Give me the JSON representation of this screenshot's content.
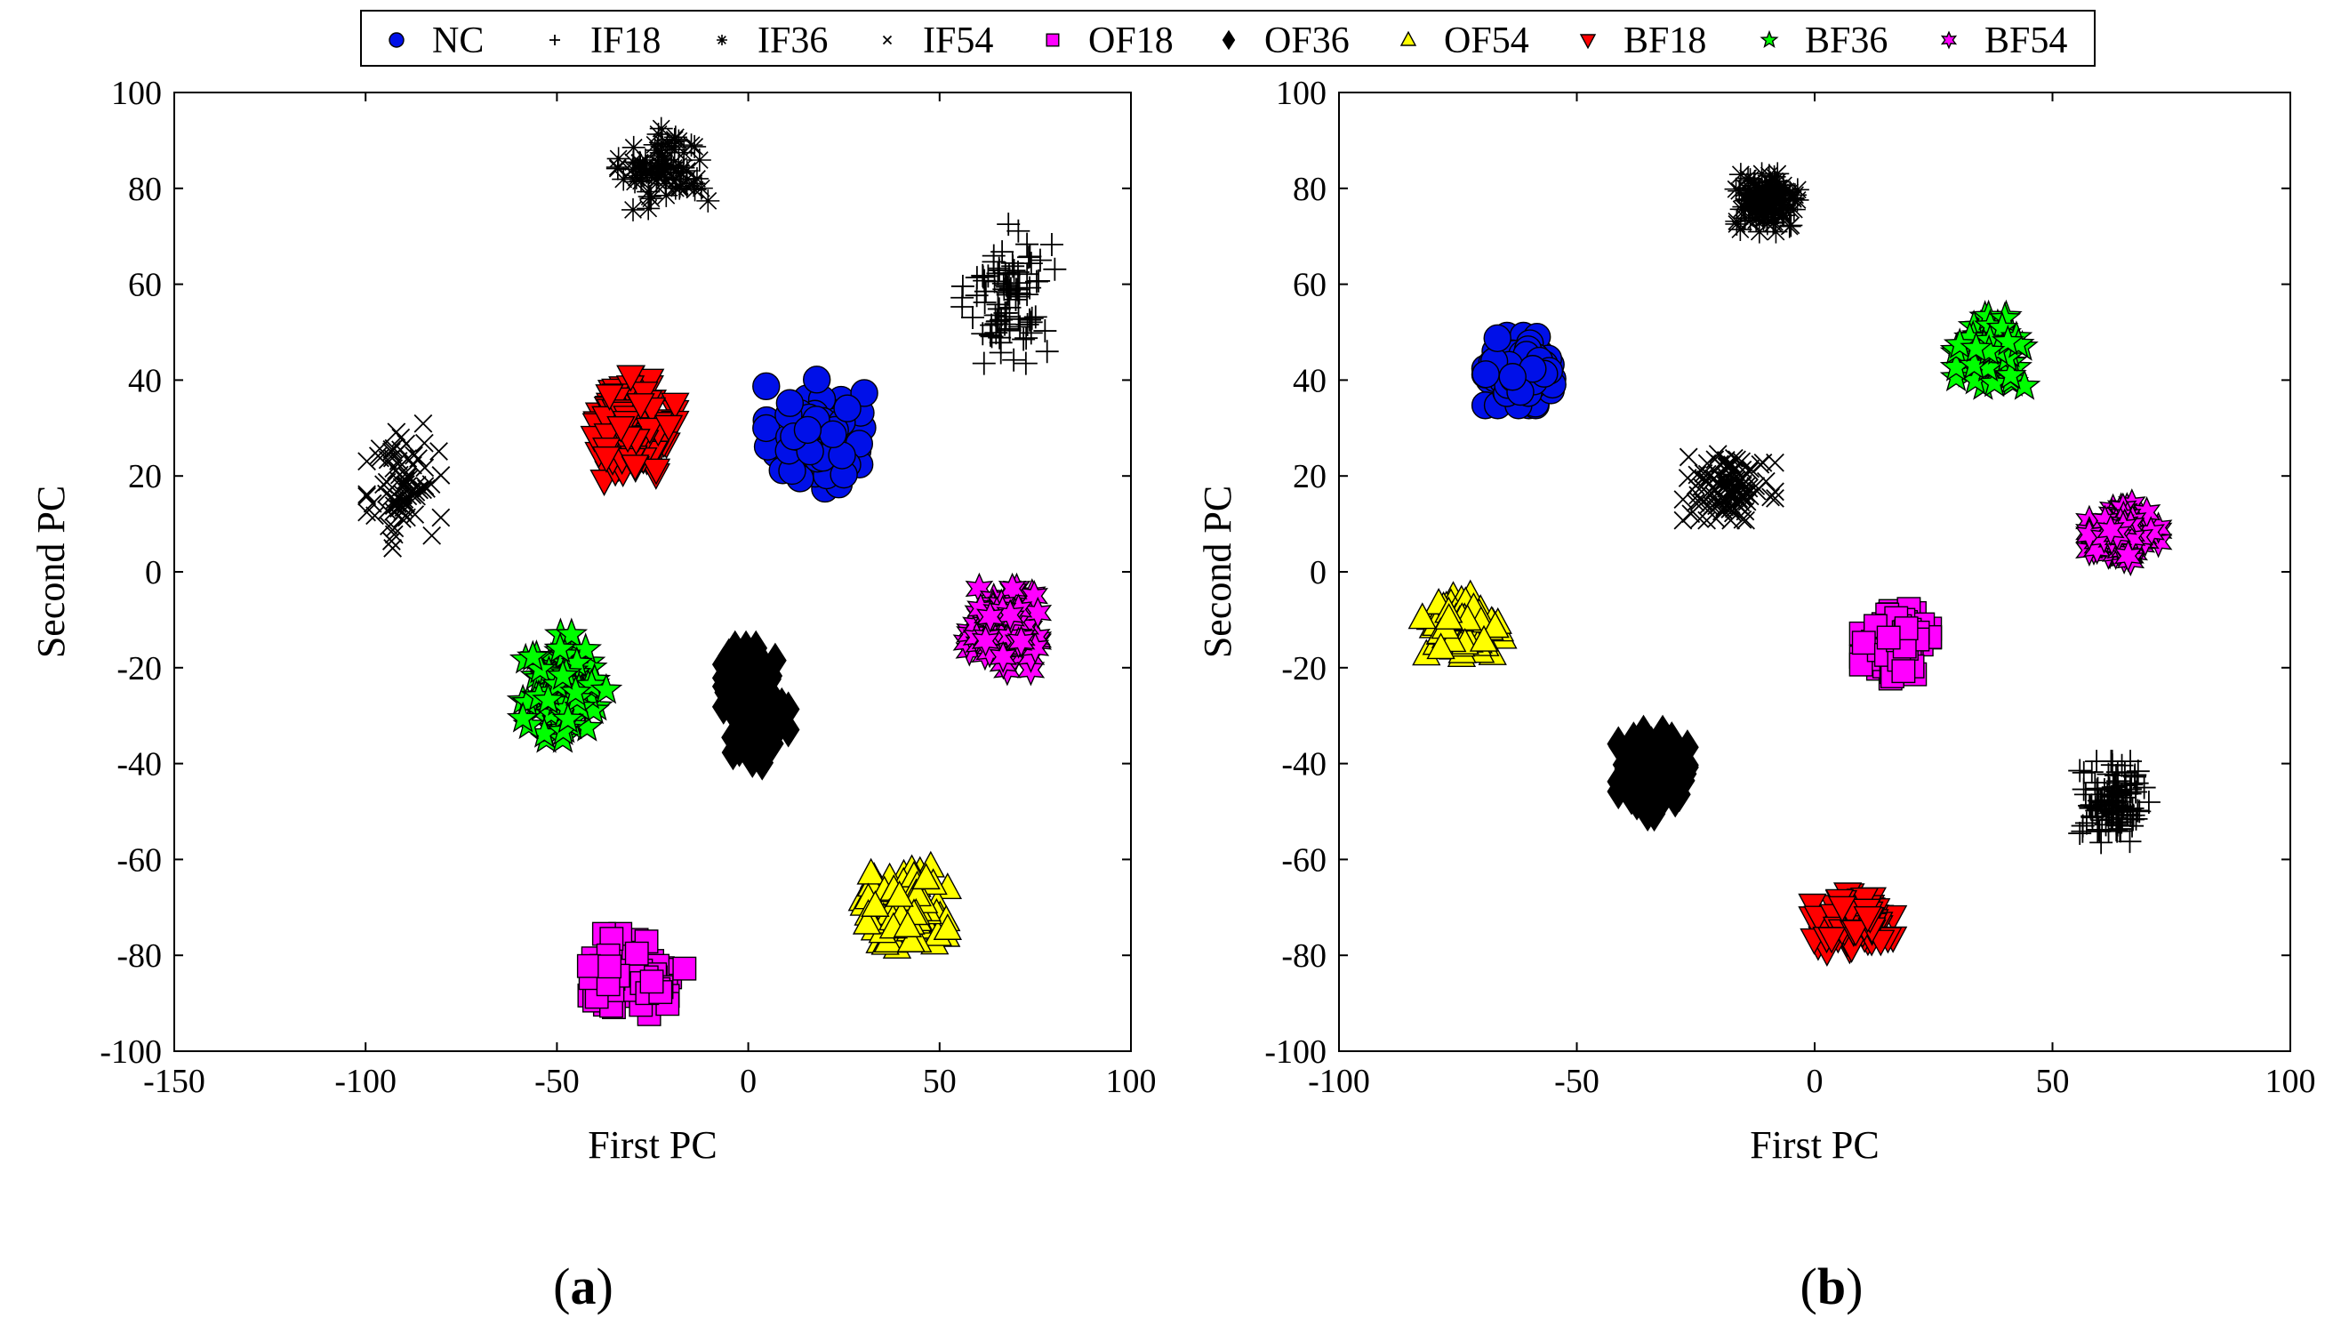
{
  "legend": [
    {
      "key": "NC",
      "label": "NC",
      "marker": "circle",
      "fill": "#0010e8",
      "stroke": "#000000"
    },
    {
      "key": "IF18",
      "label": "IF18",
      "marker": "plus",
      "fill": "none",
      "stroke": "#000000"
    },
    {
      "key": "IF36",
      "label": "IF36",
      "marker": "asterisk",
      "fill": "none",
      "stroke": "#000000"
    },
    {
      "key": "IF54",
      "label": "IF54",
      "marker": "cross",
      "fill": "none",
      "stroke": "#000000"
    },
    {
      "key": "OF18",
      "label": "OF18",
      "marker": "square",
      "fill": "#ff00ff",
      "stroke": "#000000"
    },
    {
      "key": "OF36",
      "label": "OF36",
      "marker": "diamond",
      "fill": "#000000",
      "stroke": "#000000"
    },
    {
      "key": "OF54",
      "label": "OF54",
      "marker": "triangle-up",
      "fill": "#ffff00",
      "stroke": "#000000"
    },
    {
      "key": "BF18",
      "label": "BF18",
      "marker": "triangle-down",
      "fill": "#ff0000",
      "stroke": "#000000"
    },
    {
      "key": "BF36",
      "label": "BF36",
      "marker": "pentagram",
      "fill": "#00ff00",
      "stroke": "#000000"
    },
    {
      "key": "BF54",
      "label": "BF54",
      "marker": "hexagram",
      "fill": "#ff00ff",
      "stroke": "#000000"
    }
  ],
  "chart_data": [
    {
      "type": "scatter",
      "caption_letter": "a",
      "xlabel": "First PC",
      "ylabel": "Second PC",
      "xlim": [
        -150,
        100
      ],
      "ylim": [
        -100,
        100
      ],
      "xticks": [
        -150,
        -100,
        -50,
        0,
        50,
        100
      ],
      "yticks": [
        -100,
        -80,
        -60,
        -40,
        -20,
        0,
        20,
        40,
        60,
        80,
        100
      ],
      "grid": false,
      "series": [
        {
          "name": "NC",
          "cluster_center": [
            18,
            28
          ],
          "spread": [
            11,
            10
          ],
          "points_shown": 90
        },
        {
          "name": "IF18",
          "cluster_center": [
            68,
            58
          ],
          "spread": [
            10,
            12
          ],
          "points_shown": 90
        },
        {
          "name": "IF36",
          "cluster_center": [
            -22,
            84
          ],
          "spread": [
            10,
            7
          ],
          "points_shown": 80
        },
        {
          "name": "IF54",
          "cluster_center": [
            -90,
            18
          ],
          "spread": [
            8,
            12
          ],
          "points_shown": 80
        },
        {
          "name": "OF18",
          "cluster_center": [
            -30,
            -84
          ],
          "spread": [
            13,
            7
          ],
          "points_shown": 65
        },
        {
          "name": "OF36",
          "cluster_center": [
            2,
            -28
          ],
          "spread": [
            7,
            10
          ],
          "points_shown": 160
        },
        {
          "name": "OF54",
          "cluster_center": [
            40,
            -70
          ],
          "spread": [
            10,
            7
          ],
          "points_shown": 120
        },
        {
          "name": "BF18",
          "cluster_center": [
            -30,
            30
          ],
          "spread": [
            9,
            9
          ],
          "points_shown": 130
        },
        {
          "name": "BF36",
          "cluster_center": [
            -48,
            -24
          ],
          "spread": [
            9,
            9
          ],
          "points_shown": 110
        },
        {
          "name": "BF54",
          "cluster_center": [
            66,
            -12
          ],
          "spread": [
            8,
            7
          ],
          "points_shown": 120
        }
      ]
    },
    {
      "type": "scatter",
      "caption_letter": "b",
      "xlabel": "First PC",
      "ylabel": "Second PC",
      "xlim": [
        -100,
        100
      ],
      "ylim": [
        -100,
        100
      ],
      "xticks": [
        -100,
        -50,
        0,
        50,
        100
      ],
      "yticks": [
        -100,
        -80,
        -60,
        -40,
        -20,
        0,
        20,
        40,
        60,
        80,
        100
      ],
      "grid": false,
      "series": [
        {
          "name": "NC",
          "cluster_center": [
            -62,
            42
          ],
          "spread": [
            6,
            6
          ],
          "points_shown": 110
        },
        {
          "name": "IF18",
          "cluster_center": [
            63,
            -48
          ],
          "spread": [
            6,
            7
          ],
          "points_shown": 120
        },
        {
          "name": "IF36",
          "cluster_center": [
            -10,
            77
          ],
          "spread": [
            6,
            5
          ],
          "points_shown": 120
        },
        {
          "name": "IF54",
          "cluster_center": [
            -18,
            18
          ],
          "spread": [
            8,
            6
          ],
          "points_shown": 110
        },
        {
          "name": "OF18",
          "cluster_center": [
            17,
            -15
          ],
          "spread": [
            6,
            6
          ],
          "points_shown": 100
        },
        {
          "name": "OF36",
          "cluster_center": [
            -34,
            -42
          ],
          "spread": [
            6,
            7
          ],
          "points_shown": 200
        },
        {
          "name": "OF54",
          "cluster_center": [
            -74,
            -12
          ],
          "spread": [
            7,
            6
          ],
          "points_shown": 110
        },
        {
          "name": "BF18",
          "cluster_center": [
            8,
            -73
          ],
          "spread": [
            7,
            5
          ],
          "points_shown": 110
        },
        {
          "name": "BF36",
          "cluster_center": [
            37,
            46
          ],
          "spread": [
            6,
            6
          ],
          "points_shown": 110
        },
        {
          "name": "BF54",
          "cluster_center": [
            65,
            8
          ],
          "spread": [
            6,
            5
          ],
          "points_shown": 110
        }
      ]
    }
  ]
}
